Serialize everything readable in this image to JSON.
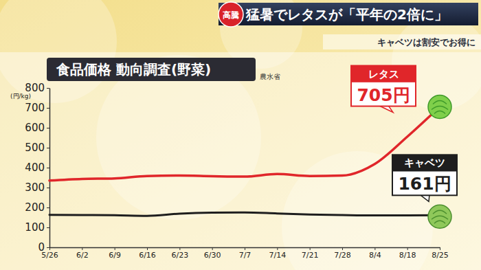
{
  "chart_data": {
    "type": "line",
    "headline_badge": "高騰",
    "headline": "猛暑でレタスが「平年の2倍に」",
    "subtitle": "キャベツは割安でお得に",
    "title": "食品価格 動向調査(野菜)",
    "source": "農水省",
    "y_label": "(円/kg)",
    "categories": [
      "5/26",
      "6/2",
      "6/9",
      "6/16",
      "6/23",
      "6/30",
      "7/7",
      "7/14",
      "7/21",
      "7/28",
      "8/4",
      "8/18",
      "8/25"
    ],
    "series": [
      {
        "name": "レタス",
        "color": "#e0262a",
        "values": [
          335,
          343,
          346,
          358,
          360,
          357,
          355,
          368,
          358,
          360,
          418,
          555,
          705
        ],
        "value_labels": [
          null,
          null,
          null,
          null,
          null,
          null,
          null,
          null,
          null,
          null,
          null,
          null,
          "705円"
        ]
      },
      {
        "name": "キャベツ",
        "color": "#1e1e1e",
        "values": [
          163,
          162,
          161,
          158,
          169,
          174,
          175,
          170,
          165,
          162,
          160,
          160,
          161
        ],
        "value_labels": [
          null,
          null,
          null,
          null,
          null,
          null,
          null,
          null,
          null,
          null,
          null,
          null,
          "161円"
        ]
      }
    ],
    "ylim": [
      0,
      800
    ],
    "yticks": [
      0,
      100,
      200,
      300,
      400,
      500,
      600,
      700,
      800
    ],
    "grid": false
  }
}
